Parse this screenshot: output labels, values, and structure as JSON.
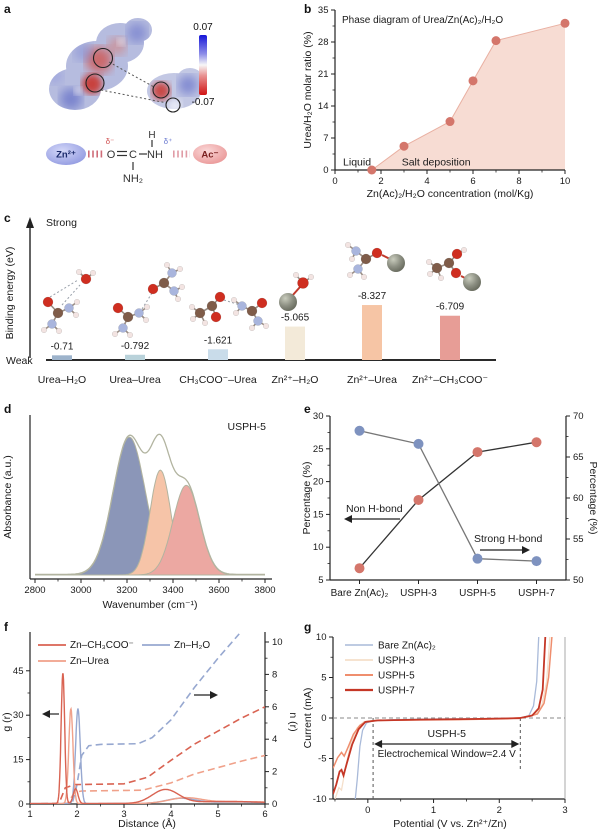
{
  "panel_a": {
    "panel_label": "a",
    "colorbar": {
      "max": "0.07",
      "min": "-0.07"
    },
    "schematic": {
      "cation": "Zn²⁺",
      "anion": "Ac⁻",
      "delta_minus": "δ⁻",
      "delta_plus": "δ⁺",
      "atom_o": "O",
      "atom_c": "C",
      "atom_nh": "NH",
      "atom_h": "H",
      "atom_nh2": "NH₂"
    }
  },
  "chart_data": [
    {
      "id": "b",
      "panel_label": "b",
      "type": "scatter-area",
      "title": "Phase diagram of Urea/Zn(Ac)₂/H₂O",
      "xlabel": "Zn(Ac)₂/H₂O concentration (mol/Kg)",
      "ylabel": "Urea/H₂O molar ratio (%)",
      "xlim": [
        0,
        10
      ],
      "ylim": [
        0,
        35
      ],
      "xticks": [
        0,
        2,
        4,
        6,
        8,
        10
      ],
      "xminor": [
        1,
        3,
        5,
        7,
        9
      ],
      "yticks": [
        0,
        7,
        14,
        21,
        28,
        35
      ],
      "yminor": [
        3.5,
        10.5,
        17.5,
        24.5,
        31.5
      ],
      "points": [
        [
          1.6,
          0
        ],
        [
          3,
          5.2
        ],
        [
          5,
          10.6
        ],
        [
          6,
          19.5
        ],
        [
          7,
          28.3
        ],
        [
          10,
          32.1
        ]
      ],
      "region_labels": {
        "left": "Liquid",
        "right": "Salt deposition"
      },
      "colors": {
        "point": "#d4766b",
        "area": "#f7dcd3",
        "edge": "#e9b0a2"
      }
    },
    {
      "id": "c",
      "panel_label": "c",
      "type": "bar",
      "ylabel": "Binding energy (eV)",
      "axis_top": "Strong",
      "axis_bottom": "Weak",
      "categories": [
        "Urea–H₂O",
        "Urea–Urea",
        "CH₃COO⁻–Urea",
        "Zn²⁺–H₂O",
        "Zn²⁺–Urea",
        "Zn²⁺–CH₃COO⁻"
      ],
      "values": [
        -0.71,
        -0.792,
        -1.621,
        -5.065,
        -8.327,
        -6.709
      ],
      "value_labels": [
        "-0.71",
        "-0.792",
        "-1.621",
        "-5.065",
        "-8.327",
        "-6.709"
      ],
      "bar_colors": [
        "#9db3cb",
        "#b9d2da",
        "#c9dcea",
        "#f3ead9",
        "#f6c5a5",
        "#e79d96"
      ]
    },
    {
      "id": "d",
      "panel_label": "d",
      "type": "fitted-spectrum",
      "annotation": "USPH-5",
      "xlabel": "Wavenumber (cm⁻¹)",
      "ylabel": "Absorbance (a.u.)",
      "xlim": [
        2800,
        3800
      ],
      "xticks": [
        2800,
        3000,
        3200,
        3400,
        3600,
        3800
      ],
      "xminor_step": 100,
      "peaks": [
        {
          "center": 3210,
          "sigma": 70,
          "height": 1.0,
          "fill": "#8b96b8"
        },
        {
          "center": 3345,
          "sigma": 45,
          "height": 0.76,
          "fill": "#f6c4a8"
        },
        {
          "center": 3458,
          "sigma": 58,
          "height": 0.65,
          "fill": "#eca8a2"
        }
      ],
      "envelope_color": "#b2b4a0"
    },
    {
      "id": "e",
      "panel_label": "e",
      "type": "dual-axis-line",
      "categories": [
        "Bare Zn(Ac)₂",
        "USPH-3",
        "USPH-5",
        "USPH-7"
      ],
      "left_axis": {
        "label": "Percentage (%)",
        "lim": [
          5,
          30
        ],
        "ticks": [
          5,
          10,
          15,
          20,
          25,
          30
        ]
      },
      "right_axis": {
        "label": "Percentage (%)",
        "lim": [
          50,
          70
        ],
        "ticks": [
          50,
          55,
          60,
          65,
          70
        ]
      },
      "series": [
        {
          "name": "Non H-bond",
          "axis": "left",
          "values": [
            6.8,
            17.2,
            24.5,
            26.0
          ],
          "point_color": "#d4766b",
          "line_color": "#333333"
        },
        {
          "name": "Strong H-bond",
          "axis": "right",
          "values": [
            68.2,
            66.6,
            52.6,
            52.3
          ],
          "point_color": "#7e92bf",
          "line_color": "#777777"
        }
      ]
    },
    {
      "id": "f",
      "panel_label": "f",
      "type": "rdf",
      "xlabel": "Distance (Å)",
      "ylabel_left": "g (r)",
      "ylabel_right": "n (r)",
      "xlim": [
        1,
        6
      ],
      "xticks": [
        1,
        2,
        3,
        4,
        5,
        6
      ],
      "left_axis": {
        "lim": [
          0,
          55.4
        ],
        "ticks": [
          0,
          15,
          30,
          45
        ],
        "minors": [
          7.5,
          22.5,
          37.5
        ]
      },
      "right_axis": {
        "lim": [
          0,
          10
        ],
        "ticks": [
          0,
          2,
          4,
          6,
          8,
          10
        ],
        "minors": [
          1,
          3,
          5,
          7,
          9
        ]
      },
      "legend": [
        "Zn–CH₃COO⁻",
        "Zn–Urea",
        "Zn–H₂O"
      ],
      "solid_series": [
        {
          "name": "Zn–H₂O",
          "color": "#97a8d0",
          "peaks": [
            {
              "c": 2.02,
              "s": 0.05,
              "h": 32
            },
            {
              "c": 4.2,
              "s": 0.3,
              "h": 1.6
            },
            {
              "c": 5.3,
              "s": 0.8,
              "h": 0.5
            }
          ]
        },
        {
          "name": "Zn–Urea",
          "color": "#f0a18a",
          "peaks": [
            {
              "c": 1.87,
              "s": 0.045,
              "h": 32
            },
            {
              "c": 4.3,
              "s": 0.35,
              "h": 1.8
            },
            {
              "c": 5.5,
              "s": 0.8,
              "h": 0.6
            }
          ]
        },
        {
          "name": "Zn–CH₃COO⁻",
          "color": "#d96352",
          "peaks": [
            {
              "c": 1.7,
              "s": 0.038,
              "h": 44
            },
            {
              "c": 1.97,
              "s": 0.05,
              "h": 5
            },
            {
              "c": 3.88,
              "s": 0.28,
              "h": 4.6
            },
            {
              "c": 5.2,
              "s": 0.8,
              "h": 0.7
            }
          ]
        }
      ],
      "dashed_series": [
        {
          "name": "Zn–H₂O n(r)",
          "color": "#97a8d0",
          "points": [
            [
              1,
              0
            ],
            [
              1.9,
              0.05
            ],
            [
              2.0,
              1.2
            ],
            [
              2.1,
              3.0
            ],
            [
              2.25,
              3.6
            ],
            [
              2.5,
              3.68
            ],
            [
              3.3,
              3.72
            ],
            [
              3.6,
              4.1
            ],
            [
              4.0,
              5.2
            ],
            [
              4.5,
              7.2
            ],
            [
              5.0,
              9.0
            ],
            [
              5.45,
              10.5
            ]
          ]
        },
        {
          "name": "Zn–CH₃COO⁻ n(r)",
          "color": "#d96352",
          "points": [
            [
              1,
              0
            ],
            [
              1.62,
              0.05
            ],
            [
              1.75,
              1.0
            ],
            [
              1.95,
              1.2
            ],
            [
              3.0,
              1.25
            ],
            [
              3.5,
              1.65
            ],
            [
              4.0,
              2.7
            ],
            [
              4.5,
              3.7
            ],
            [
              5.0,
              4.5
            ],
            [
              5.5,
              5.3
            ],
            [
              6.0,
              6.0
            ]
          ]
        },
        {
          "name": "Zn–Urea n(r)",
          "color": "#f0a18a",
          "points": [
            [
              1,
              0
            ],
            [
              1.8,
              0.05
            ],
            [
              1.95,
              0.72
            ],
            [
              2.1,
              0.8
            ],
            [
              3.4,
              0.85
            ],
            [
              4.0,
              1.3
            ],
            [
              4.5,
              1.85
            ],
            [
              5.0,
              2.25
            ],
            [
              5.5,
              2.65
            ],
            [
              6.0,
              3.0
            ]
          ]
        }
      ]
    },
    {
      "id": "g",
      "panel_label": "g",
      "type": "lsv",
      "xlabel": "Potential (V vs. Zn²⁺/Zn)",
      "ylabel": "Current (mA)",
      "xlim": [
        -0.53,
        3
      ],
      "ylim": [
        -10,
        10
      ],
      "xticks": [
        0,
        1,
        2,
        3
      ],
      "xminor": [
        -0.5,
        0.5,
        1.5,
        2.5
      ],
      "yticks": [
        -10,
        -5,
        0,
        5,
        10
      ],
      "yminor": [
        -7.5,
        -2.5,
        2.5,
        7.5
      ],
      "legend": [
        {
          "name": "Bare Zn(Ac)₂",
          "color": "#a9bad9"
        },
        {
          "name": "USPH-3",
          "color": "#f5dfca"
        },
        {
          "name": "USPH-5",
          "color": "#ef8e6e"
        },
        {
          "name": "USPH-7",
          "color": "#c53726"
        }
      ],
      "annotations": {
        "window_label": "USPH-5",
        "window_text": "Electrochemical Window=2.4 V",
        "window_x": [
          0.08,
          2.32
        ]
      },
      "series": [
        {
          "name": "USPH-3",
          "color": "#f5dfca",
          "width": 1.3,
          "points": [
            [
              -0.5,
              -10
            ],
            [
              -0.44,
              -8.6
            ],
            [
              -0.4,
              -8.9
            ],
            [
              -0.34,
              -6.2
            ],
            [
              -0.26,
              -3.2
            ],
            [
              -0.16,
              -1.2
            ],
            [
              -0.06,
              -0.45
            ],
            [
              0.1,
              -0.3
            ],
            [
              0.6,
              -0.2
            ],
            [
              1.2,
              -0.15
            ],
            [
              2.0,
              -0.1
            ],
            [
              2.35,
              0.05
            ],
            [
              2.55,
              0.4
            ],
            [
              2.65,
              1.6
            ],
            [
              2.72,
              4.5
            ],
            [
              2.77,
              10
            ]
          ]
        },
        {
          "name": "Bare Zn(Ac)₂",
          "color": "#a9bad9",
          "width": 1.3,
          "points": [
            [
              -0.19,
              -10
            ],
            [
              -0.16,
              -7.5
            ],
            [
              -0.12,
              -3.5
            ],
            [
              -0.08,
              -1.5
            ],
            [
              -0.02,
              -0.6
            ],
            [
              0.08,
              -0.35
            ],
            [
              0.4,
              -0.2
            ],
            [
              1.0,
              -0.12
            ],
            [
              1.8,
              -0.08
            ],
            [
              2.3,
              -0.03
            ],
            [
              2.45,
              0.3
            ],
            [
              2.52,
              1.5
            ],
            [
              2.57,
              4.5
            ],
            [
              2.6,
              10
            ]
          ]
        },
        {
          "name": "USPH-5",
          "color": "#ef8e6e",
          "width": 1.5,
          "points": [
            [
              -0.53,
              -6.2
            ],
            [
              -0.46,
              -4.9
            ],
            [
              -0.4,
              -4.25
            ],
            [
              -0.36,
              -4.7
            ],
            [
              -0.3,
              -3.6
            ],
            [
              -0.22,
              -2.0
            ],
            [
              -0.12,
              -0.9
            ],
            [
              -0.02,
              -0.45
            ],
            [
              0.15,
              -0.3
            ],
            [
              0.7,
              -0.25
            ],
            [
              1.4,
              -0.2
            ],
            [
              2.1,
              -0.1
            ],
            [
              2.35,
              0.05
            ],
            [
              2.58,
              0.5
            ],
            [
              2.68,
              1.8
            ],
            [
              2.75,
              5
            ],
            [
              2.8,
              10
            ]
          ]
        },
        {
          "name": "USPH-7",
          "color": "#c53726",
          "width": 1.8,
          "points": [
            [
              -0.53,
              -9.4
            ],
            [
              -0.48,
              -8.2
            ],
            [
              -0.43,
              -6.6
            ],
            [
              -0.4,
              -6.4
            ],
            [
              -0.37,
              -7.1
            ],
            [
              -0.32,
              -5.6
            ],
            [
              -0.24,
              -3.3
            ],
            [
              -0.14,
              -1.4
            ],
            [
              -0.04,
              -0.5
            ],
            [
              0.15,
              -0.3
            ],
            [
              0.8,
              -0.2
            ],
            [
              1.6,
              -0.12
            ],
            [
              2.3,
              -0.02
            ],
            [
              2.5,
              0.3
            ],
            [
              2.6,
              1.2
            ],
            [
              2.66,
              3.5
            ],
            [
              2.7,
              10
            ]
          ]
        }
      ]
    }
  ]
}
